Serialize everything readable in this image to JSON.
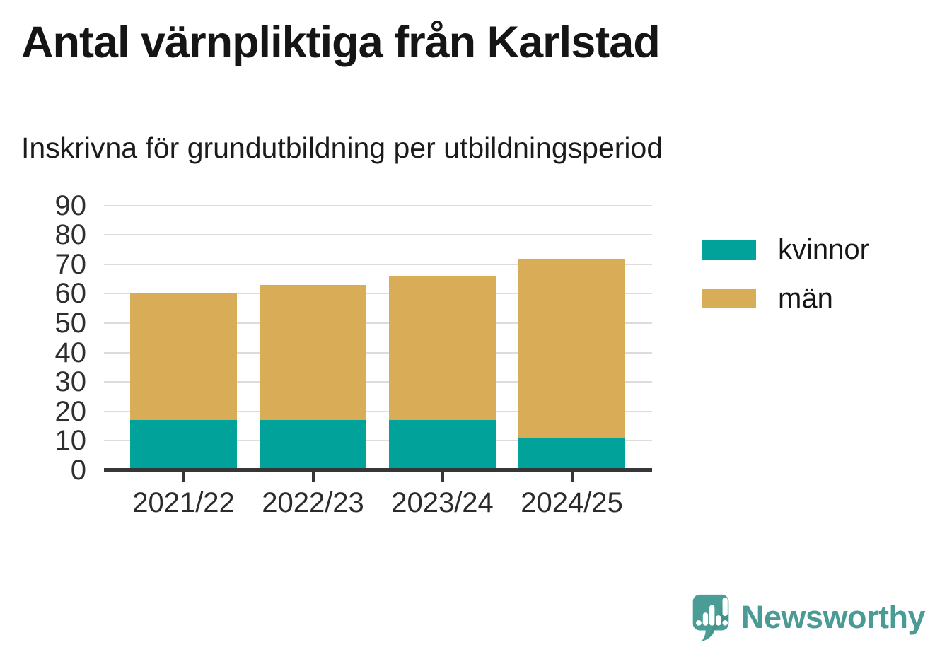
{
  "header": {
    "title": "Antal värnpliktiga från Karlstad",
    "subtitle": "Inskrivna för grundutbildning per utbildningsperiod"
  },
  "chart_data": {
    "type": "bar",
    "stacked": true,
    "title": "Antal värnpliktiga från Karlstad",
    "subtitle": "Inskrivna för grundutbildning per utbildningsperiod",
    "categories": [
      "2021/22",
      "2022/23",
      "2023/24",
      "2024/25"
    ],
    "series": [
      {
        "name": "kvinnor",
        "color": "#00A29A",
        "values": [
          17,
          17,
          17,
          11
        ]
      },
      {
        "name": "män",
        "color": "#D9AC57",
        "values": [
          43,
          46,
          49,
          61
        ]
      }
    ],
    "stack_totals": [
      60,
      63,
      66,
      72
    ],
    "xlabel": "",
    "ylabel": "",
    "ylim": [
      0,
      90
    ],
    "yticks": [
      0,
      10,
      20,
      30,
      40,
      50,
      60,
      70,
      80,
      90
    ],
    "grid": "horizontal",
    "gridline_color": "#dcdcdc",
    "axis_color": "#363636",
    "legend_position": "right"
  },
  "legend": {
    "items": [
      {
        "label": "kvinnor",
        "color": "#00A29A"
      },
      {
        "label": "män",
        "color": "#D9AC57"
      }
    ]
  },
  "footer": {
    "brand": "Newsworthy",
    "brand_color": "#4A9B95",
    "logo_icon": "speech-bubble-bar-chart-icon"
  }
}
